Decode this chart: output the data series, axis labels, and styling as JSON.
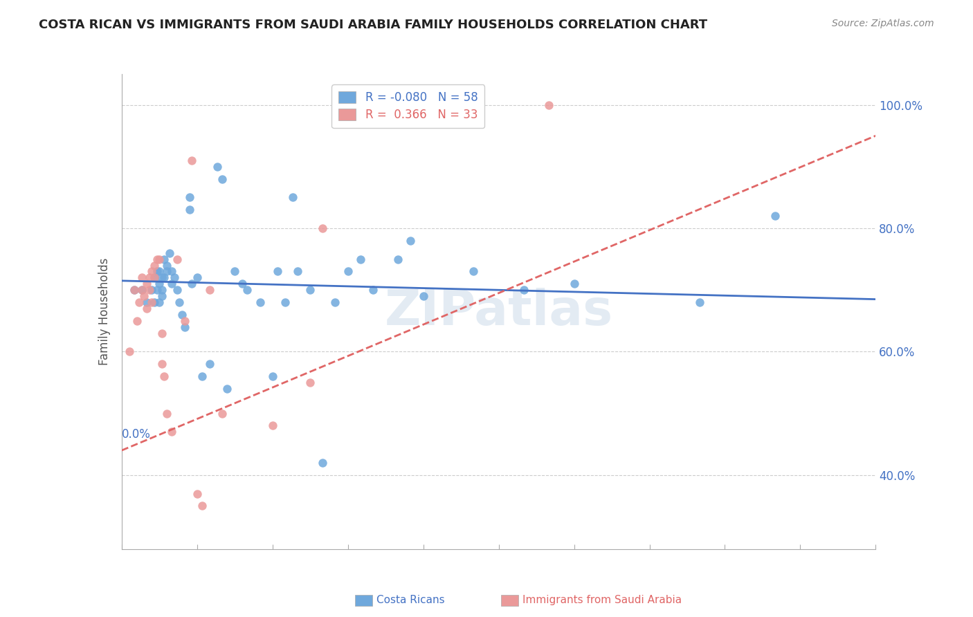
{
  "title": "COSTA RICAN VS IMMIGRANTS FROM SAUDI ARABIA FAMILY HOUSEHOLDS CORRELATION CHART",
  "source": "Source: ZipAtlas.com",
  "ylabel": "Family Households",
  "yaxis_labels": [
    "100.0%",
    "80.0%",
    "60.0%",
    "40.0%"
  ],
  "yaxis_values": [
    1.0,
    0.8,
    0.6,
    0.4
  ],
  "xlim": [
    0.0,
    0.3
  ],
  "ylim": [
    0.28,
    1.05
  ],
  "legend_r_blue": "-0.080",
  "legend_n_blue": "58",
  "legend_r_pink": "0.366",
  "legend_n_pink": "33",
  "blue_color": "#6fa8dc",
  "pink_color": "#ea9999",
  "blue_line_color": "#4472c4",
  "pink_line_color": "#e06666",
  "watermark": "ZIPatlas",
  "blue_scatter_x": [
    0.005,
    0.008,
    0.01,
    0.012,
    0.013,
    0.013,
    0.014,
    0.014,
    0.015,
    0.015,
    0.015,
    0.016,
    0.016,
    0.016,
    0.017,
    0.017,
    0.018,
    0.018,
    0.019,
    0.02,
    0.02,
    0.021,
    0.022,
    0.023,
    0.024,
    0.025,
    0.027,
    0.027,
    0.028,
    0.03,
    0.032,
    0.035,
    0.038,
    0.04,
    0.042,
    0.045,
    0.048,
    0.05,
    0.055,
    0.06,
    0.062,
    0.065,
    0.068,
    0.07,
    0.075,
    0.08,
    0.085,
    0.09,
    0.095,
    0.1,
    0.11,
    0.115,
    0.12,
    0.14,
    0.16,
    0.18,
    0.23,
    0.26
  ],
  "blue_scatter_y": [
    0.7,
    0.7,
    0.68,
    0.7,
    0.72,
    0.68,
    0.73,
    0.7,
    0.73,
    0.71,
    0.68,
    0.72,
    0.7,
    0.69,
    0.75,
    0.72,
    0.74,
    0.73,
    0.76,
    0.73,
    0.71,
    0.72,
    0.7,
    0.68,
    0.66,
    0.64,
    0.85,
    0.83,
    0.71,
    0.72,
    0.56,
    0.58,
    0.9,
    0.88,
    0.54,
    0.73,
    0.71,
    0.7,
    0.68,
    0.56,
    0.73,
    0.68,
    0.85,
    0.73,
    0.7,
    0.42,
    0.68,
    0.73,
    0.75,
    0.7,
    0.75,
    0.78,
    0.69,
    0.73,
    0.7,
    0.71,
    0.68,
    0.82
  ],
  "pink_scatter_x": [
    0.003,
    0.005,
    0.006,
    0.007,
    0.008,
    0.008,
    0.009,
    0.01,
    0.01,
    0.011,
    0.011,
    0.012,
    0.012,
    0.013,
    0.013,
    0.014,
    0.015,
    0.016,
    0.016,
    0.017,
    0.018,
    0.02,
    0.022,
    0.025,
    0.028,
    0.03,
    0.032,
    0.035,
    0.04,
    0.06,
    0.075,
    0.08,
    0.17
  ],
  "pink_scatter_y": [
    0.6,
    0.7,
    0.65,
    0.68,
    0.72,
    0.7,
    0.69,
    0.71,
    0.67,
    0.72,
    0.7,
    0.73,
    0.68,
    0.74,
    0.72,
    0.75,
    0.75,
    0.63,
    0.58,
    0.56,
    0.5,
    0.47,
    0.75,
    0.65,
    0.91,
    0.37,
    0.35,
    0.7,
    0.5,
    0.48,
    0.55,
    0.8,
    1.0
  ],
  "blue_trend_x": [
    0.0,
    0.3
  ],
  "blue_trend_y": [
    0.715,
    0.685
  ],
  "pink_trend_x": [
    0.0,
    0.3
  ],
  "pink_trend_y": [
    0.44,
    0.95
  ]
}
